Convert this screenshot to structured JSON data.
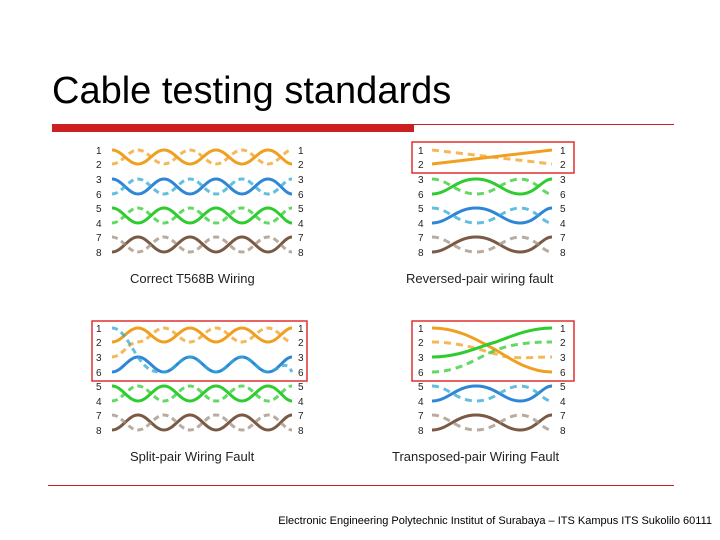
{
  "slide": {
    "title": "Cable testing standards",
    "footer": "Electronic Engineering Polytechnic Institut of Surabaya – ITS Kampus ITS Sukolilo 60111"
  },
  "colors": {
    "orange": "#f0a020",
    "blue": "#2f86d6",
    "green": "#2fcc2f",
    "brown": "#7a5a45",
    "fault_box": "#e03030",
    "accent": "#cc1f1f"
  },
  "diagrams": [
    {
      "caption": "Correct T568B Wiring",
      "left_pins": [
        "1",
        "2",
        "3",
        "6",
        "5",
        "4",
        "7",
        "8"
      ],
      "right_pins": [
        "1",
        "2",
        "3",
        "6",
        "5",
        "4",
        "7",
        "8"
      ],
      "fault_rows": []
    },
    {
      "caption": "Reversed-pair wiring fault",
      "left_pins": [
        "1",
        "2",
        "3",
        "6",
        "5",
        "4",
        "7",
        "8"
      ],
      "right_pins": [
        "1",
        "2",
        "3",
        "6",
        "5",
        "4",
        "7",
        "8"
      ],
      "fault_rows": [
        0,
        1
      ]
    },
    {
      "caption": "Split-pair Wiring Fault",
      "left_pins": [
        "1",
        "2",
        "3",
        "6",
        "5",
        "4",
        "7",
        "8"
      ],
      "right_pins": [
        "1",
        "2",
        "3",
        "6",
        "5",
        "4",
        "7",
        "8"
      ],
      "fault_rows": [
        0,
        1,
        2,
        3
      ]
    },
    {
      "caption": "Transposed-pair Wiring Fault",
      "left_pins": [
        "1",
        "2",
        "3",
        "6",
        "5",
        "4",
        "7",
        "8"
      ],
      "right_pins": [
        "1",
        "2",
        "3",
        "6",
        "5",
        "4",
        "7",
        "8"
      ],
      "fault_rows": [
        0,
        1,
        2,
        3
      ]
    }
  ]
}
